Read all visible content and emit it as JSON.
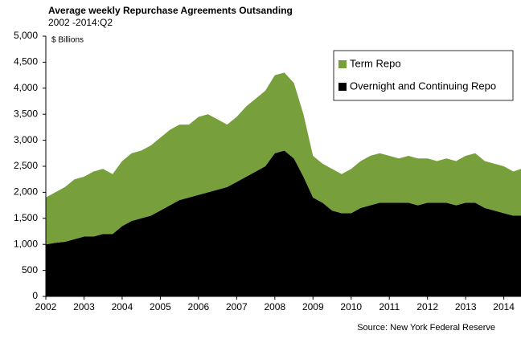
{
  "chart_data": {
    "type": "stacked_area",
    "title": "Average weekly Repurchase Agreements Outsanding",
    "subtitle": "2002 -2014:Q2",
    "y_axis_label": "$ Billions",
    "source": "Source: New York Federal Reserve",
    "x": [
      2002,
      2002.25,
      2002.5,
      2002.75,
      2003,
      2003.25,
      2003.5,
      2003.75,
      2004,
      2004.25,
      2004.5,
      2004.75,
      2005,
      2005.25,
      2005.5,
      2005.75,
      2006,
      2006.25,
      2006.5,
      2006.75,
      2007,
      2007.25,
      2007.5,
      2007.75,
      2008,
      2008.25,
      2008.5,
      2008.75,
      2009,
      2009.25,
      2009.5,
      2009.75,
      2010,
      2010.25,
      2010.5,
      2010.75,
      2011,
      2011.25,
      2011.5,
      2011.75,
      2012,
      2012.25,
      2012.5,
      2012.75,
      2013,
      2013.25,
      2013.5,
      2013.75,
      2014,
      2014.25,
      2014.45
    ],
    "series": [
      {
        "name": "Overnight and Continuing Repo",
        "color": "#000000",
        "values": [
          1000,
          1030,
          1050,
          1100,
          1150,
          1150,
          1200,
          1200,
          1350,
          1450,
          1500,
          1550,
          1650,
          1750,
          1850,
          1900,
          1950,
          2000,
          2050,
          2100,
          2200,
          2300,
          2400,
          2500,
          2750,
          2800,
          2650,
          2300,
          1900,
          1800,
          1650,
          1600,
          1600,
          1700,
          1750,
          1800,
          1800,
          1800,
          1800,
          1750,
          1800,
          1800,
          1800,
          1750,
          1800,
          1800,
          1700,
          1650,
          1600,
          1550,
          1550
        ]
      },
      {
        "name": "Term Repo",
        "color": "#77a03c",
        "values": [
          900,
          970,
          1050,
          1150,
          1150,
          1250,
          1250,
          1150,
          1250,
          1300,
          1300,
          1350,
          1400,
          1450,
          1450,
          1400,
          1500,
          1500,
          1350,
          1200,
          1250,
          1350,
          1400,
          1450,
          1500,
          1500,
          1450,
          1200,
          800,
          750,
          800,
          750,
          850,
          900,
          950,
          950,
          900,
          850,
          900,
          900,
          850,
          800,
          850,
          850,
          900,
          950,
          900,
          900,
          900,
          850,
          900
        ]
      }
    ],
    "xlim": [
      2002,
      2014.45
    ],
    "xticks": [
      2002,
      2003,
      2004,
      2005,
      2006,
      2007,
      2008,
      2009,
      2010,
      2011,
      2012,
      2013,
      2014
    ],
    "ylim": [
      0,
      5000
    ],
    "yticks": [
      0,
      500,
      {
        "value": 1000,
        "label": "1,000"
      },
      {
        "value": 1500,
        "label": "1,500"
      },
      {
        "value": 2000,
        "label": "2,000"
      },
      {
        "value": 2500,
        "label": "2,500"
      },
      {
        "value": 3000,
        "label": "3,000"
      },
      {
        "value": 3500,
        "label": "3,500"
      },
      {
        "value": 4000,
        "label": "4,000"
      },
      {
        "value": 4500,
        "label": "4,500"
      },
      {
        "value": 5000,
        "label": "5,000"
      }
    ],
    "grid": false,
    "legend": "upper right"
  }
}
